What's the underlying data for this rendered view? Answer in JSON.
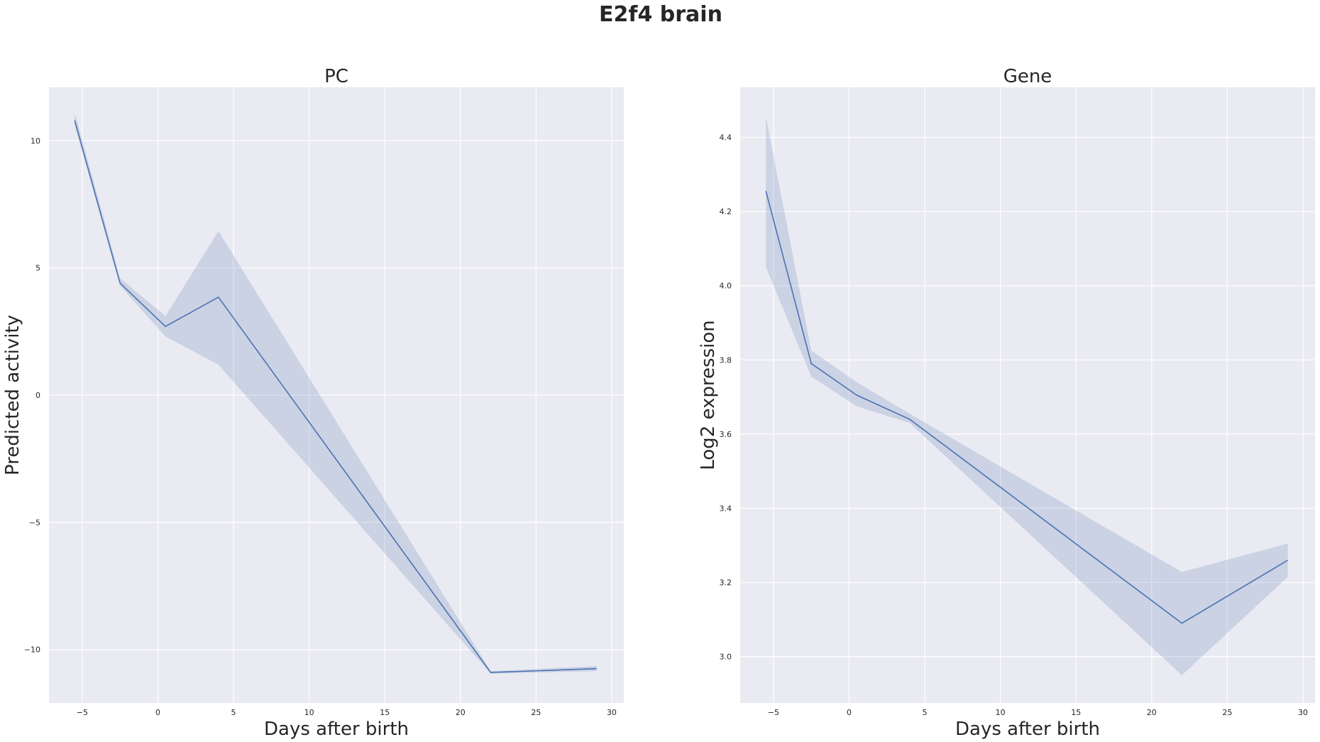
{
  "figure": {
    "suptitle": "E2f4 brain"
  },
  "chart_data": [
    {
      "type": "line",
      "title": "PC",
      "xlabel": "Days after birth",
      "ylabel": "Predicted activity",
      "xlim": [
        -7.2,
        30.8
      ],
      "ylim": [
        -12.1,
        12.1
      ],
      "xticks": [
        -5,
        0,
        5,
        10,
        15,
        20,
        25,
        30
      ],
      "yticks": [
        -10,
        -5,
        0,
        5,
        10
      ],
      "xtick_labels": [
        "−5",
        "0",
        "5",
        "10",
        "15",
        "20",
        "25",
        "30"
      ],
      "ytick_labels": [
        "−10",
        "−5",
        "0",
        "5",
        "10"
      ],
      "grid": true,
      "line_color": "#4c72b0",
      "band_color": "#4c72b0",
      "series": [
        {
          "x": [
            -5.5,
            -2.5,
            0.5,
            4,
            22,
            29
          ],
          "y": [
            10.8,
            4.4,
            2.7,
            3.85,
            -10.9,
            -10.75
          ],
          "ci_low": [
            10.6,
            4.3,
            2.3,
            1.2,
            -10.95,
            -10.85
          ],
          "ci_high": [
            11.1,
            4.6,
            3.1,
            6.45,
            -10.85,
            -10.65
          ]
        }
      ]
    },
    {
      "type": "line",
      "title": "Gene",
      "xlabel": "Days after birth",
      "ylabel": "Log2 expression",
      "xlim": [
        -7.2,
        30.8
      ],
      "ylim": [
        2.875,
        4.535
      ],
      "xticks": [
        -5,
        0,
        5,
        10,
        15,
        20,
        25,
        30
      ],
      "yticks": [
        3.0,
        3.2,
        3.4,
        3.6,
        3.8,
        4.0,
        4.2,
        4.4
      ],
      "xtick_labels": [
        "−5",
        "0",
        "5",
        "10",
        "15",
        "20",
        "25",
        "30"
      ],
      "ytick_labels": [
        "3.0",
        "3.2",
        "3.4",
        "3.6",
        "3.8",
        "4.0",
        "4.2",
        "4.4"
      ],
      "grid": true,
      "line_color": "#4c72b0",
      "band_color": "#4c72b0",
      "series": [
        {
          "x": [
            -5.5,
            -2.5,
            0.5,
            4,
            22,
            29
          ],
          "y": [
            4.255,
            3.79,
            3.705,
            3.64,
            3.09,
            3.26
          ],
          "ci_low": [
            4.05,
            3.755,
            3.675,
            3.63,
            2.95,
            3.215
          ],
          "ci_high": [
            4.455,
            3.825,
            3.74,
            3.655,
            3.228,
            3.305
          ]
        }
      ]
    }
  ]
}
